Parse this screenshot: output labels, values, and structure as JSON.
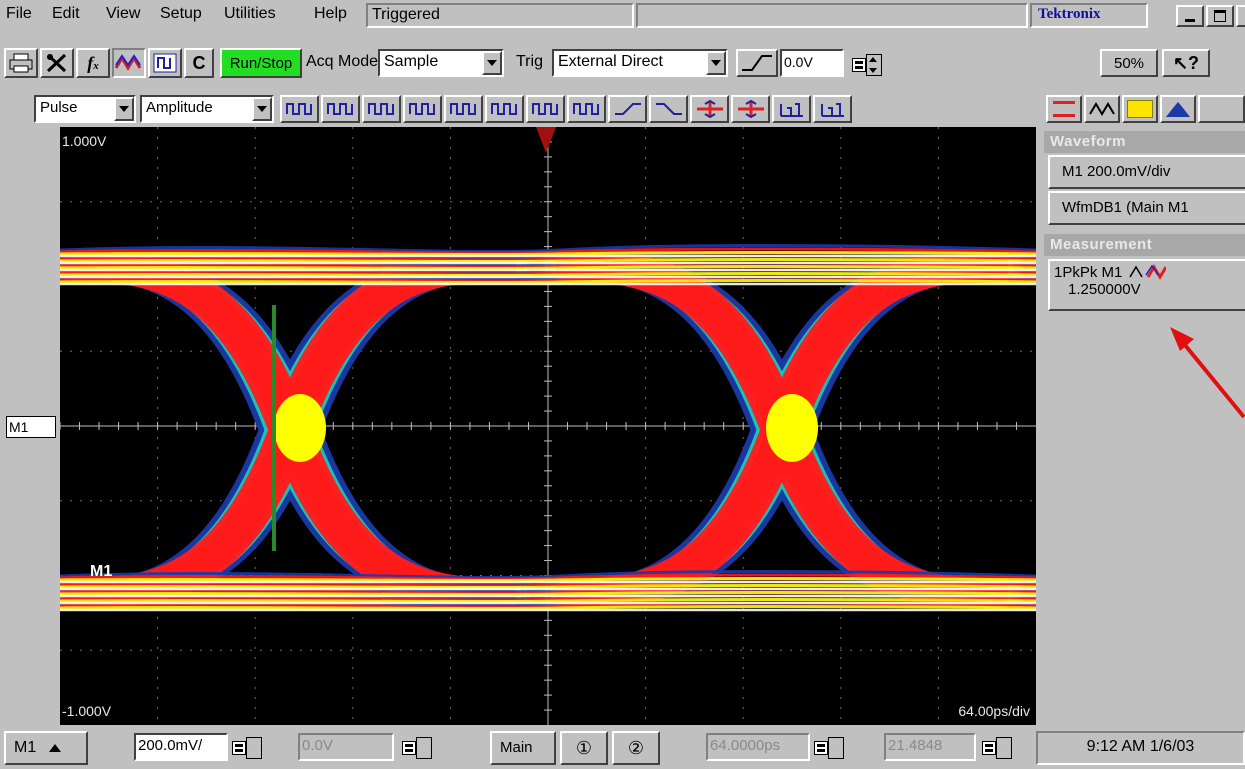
{
  "menu": {
    "items": [
      "File",
      "Edit",
      "View",
      "Setup",
      "Utilities",
      "Help"
    ],
    "status": "Triggered",
    "brand": "Tektronix"
  },
  "toolbar1": {
    "icons": [
      "print-icon",
      "tools-icon",
      "function-icon",
      "waveform-display-icon",
      "cursor-measure-icon"
    ],
    "c_label": "C",
    "run_stop_label": "Run/Stop",
    "acq_mode_label": "Acq Mode",
    "acq_mode_value": "Sample",
    "trig_label": "Trig",
    "trig_value": "External Direct",
    "trig_level": "0.0V",
    "zoom_label": "50%",
    "accent_green": "#22dd22"
  },
  "toolbar2": {
    "pulse_value": "Pulse",
    "amplitude_value": "Amplitude"
  },
  "scope": {
    "top_label": "1.000V",
    "bottom_label": "-1.000V",
    "timebase_label": "64.00ps/div",
    "channel_marker": "M1",
    "trace_label": "M1",
    "trigger_marker_color": "#a01010"
  },
  "side_panel": {
    "waveform_header": "Waveform",
    "waveform_items": [
      "M1 200.0mV/div",
      "WfmDB1 (Main M1"
    ],
    "measurement_header": "Measurement",
    "measurement_name": "1PkPk  M1",
    "measurement_value": "1.250000V",
    "annotation_arrow_color": "#e01010"
  },
  "statusbar": {
    "channel": "M1",
    "vertical_scale": "200.0mV/",
    "offset": "0.0V",
    "main_label": "Main",
    "horiz_scale": "64.0000ps",
    "position": "21.4848",
    "datetime": "9:12 AM 1/6/03"
  }
}
